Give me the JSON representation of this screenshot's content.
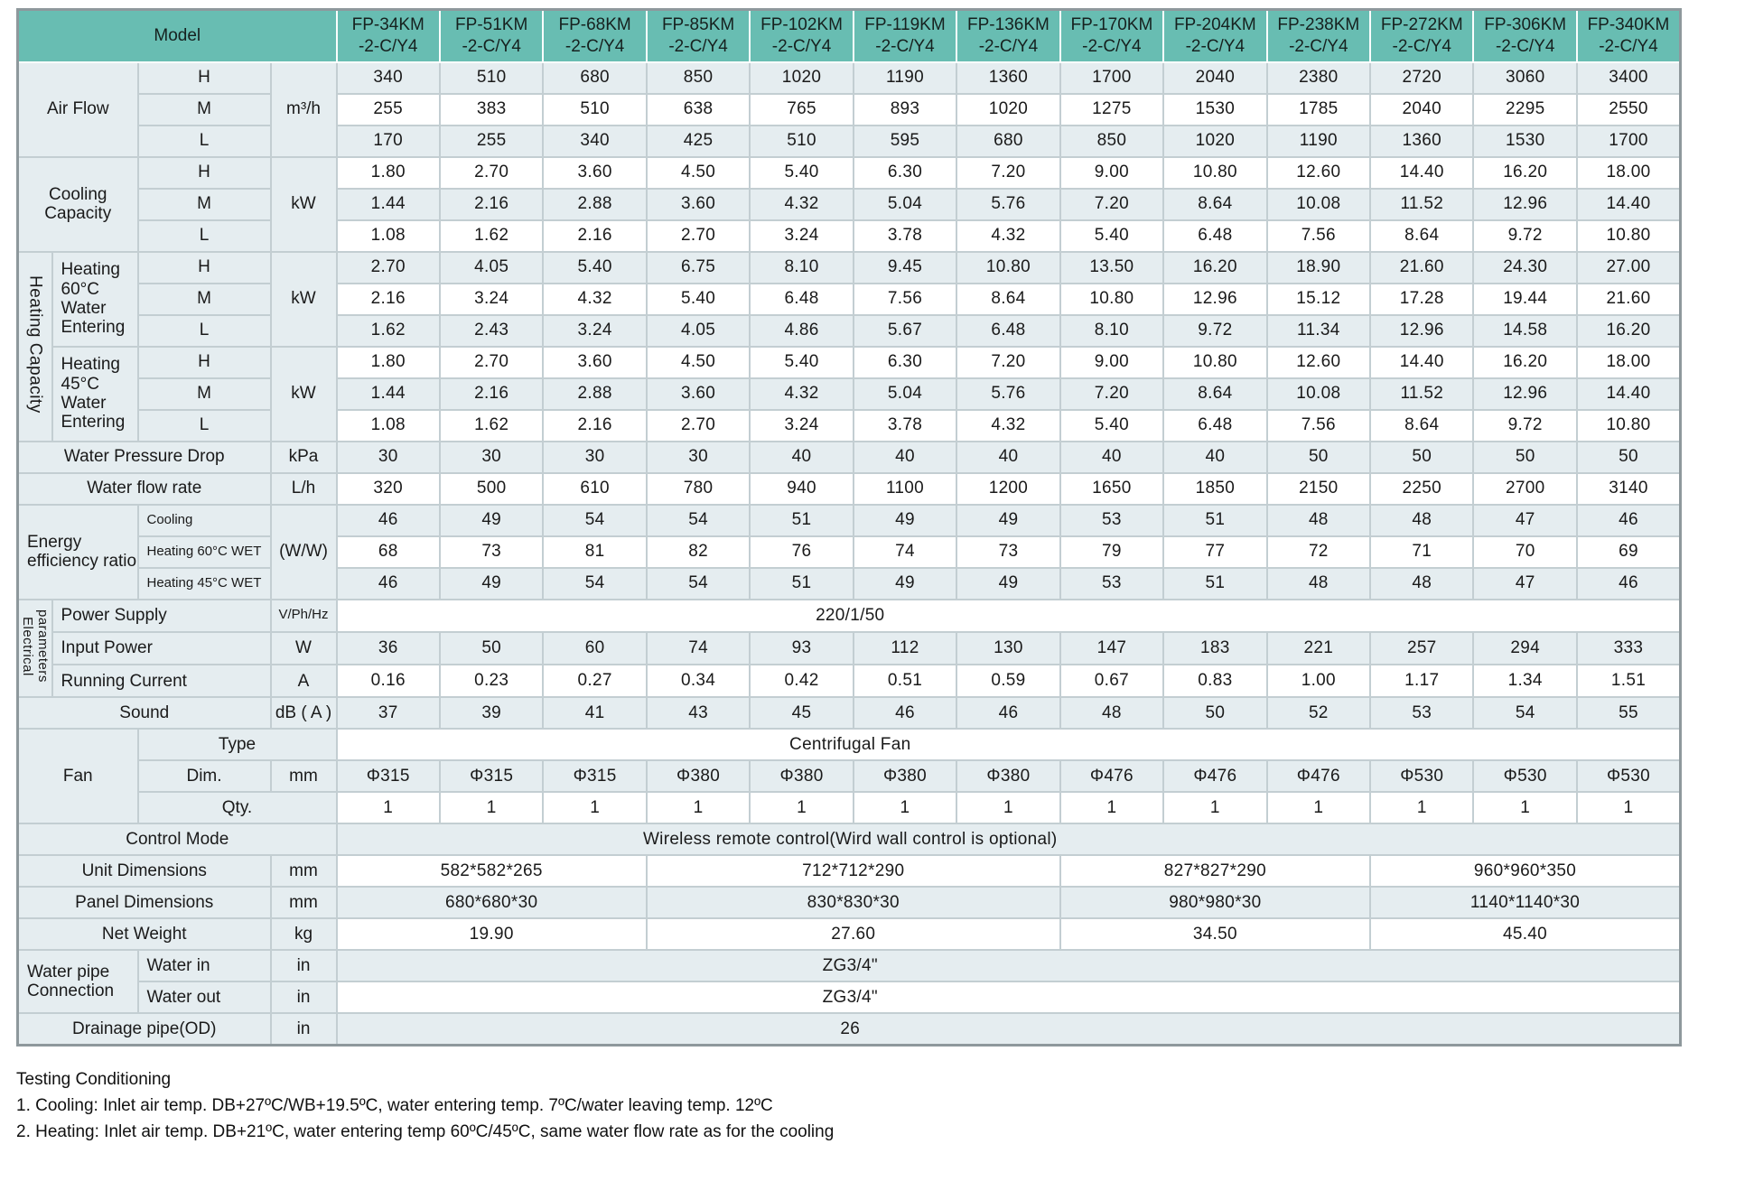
{
  "colors": {
    "header_bg": "#68bdb2",
    "row_light": "#e5edf0",
    "row_white": "#ffffff",
    "grid_line": "#c3ced2",
    "outer_frame": "#8e989c"
  },
  "table": {
    "model_label": "Model",
    "models": [
      "FP-34KM\n-2-C/Y4",
      "FP-51KM\n-2-C/Y4",
      "FP-68KM\n-2-C/Y4",
      "FP-85KM\n-2-C/Y4",
      "FP-102KM\n-2-C/Y4",
      "FP-119KM\n-2-C/Y4",
      "FP-136KM\n-2-C/Y4",
      "FP-170KM\n-2-C/Y4",
      "FP-204KM\n-2-C/Y4",
      "FP-238KM\n-2-C/Y4",
      "FP-272KM\n-2-C/Y4",
      "FP-306KM\n-2-C/Y4",
      "FP-340KM\n-2-C/Y4"
    ],
    "rows": [
      {
        "labels": [
          {
            "t": "Air Flow",
            "cs": 2,
            "rs": 3
          },
          {
            "t": "H"
          },
          {
            "t": "m³/h",
            "rs": 3
          }
        ],
        "values": [
          "340",
          "510",
          "680",
          "850",
          "1020",
          "1190",
          "1360",
          "1700",
          "2040",
          "2380",
          "2720",
          "3060",
          "3400"
        ]
      },
      {
        "labels": [
          {
            "t": "M"
          }
        ],
        "values": [
          "255",
          "383",
          "510",
          "638",
          "765",
          "893",
          "1020",
          "1275",
          "1530",
          "1785",
          "2040",
          "2295",
          "2550"
        ]
      },
      {
        "labels": [
          {
            "t": "L"
          }
        ],
        "values": [
          "170",
          "255",
          "340",
          "425",
          "510",
          "595",
          "680",
          "850",
          "1020",
          "1190",
          "1360",
          "1530",
          "1700"
        ]
      },
      {
        "labels": [
          {
            "t": "Cooling Capacity",
            "cs": 2,
            "rs": 3
          },
          {
            "t": "H"
          },
          {
            "t": "kW",
            "rs": 3
          }
        ],
        "values": [
          "1.80",
          "2.70",
          "3.60",
          "4.50",
          "5.40",
          "6.30",
          "7.20",
          "9.00",
          "10.80",
          "12.60",
          "14.40",
          "16.20",
          "18.00"
        ]
      },
      {
        "labels": [
          {
            "t": "M"
          }
        ],
        "values": [
          "1.44",
          "2.16",
          "2.88",
          "3.60",
          "4.32",
          "5.04",
          "5.76",
          "7.20",
          "8.64",
          "10.08",
          "11.52",
          "12.96",
          "14.40"
        ]
      },
      {
        "labels": [
          {
            "t": "L"
          }
        ],
        "values": [
          "1.08",
          "1.62",
          "2.16",
          "2.70",
          "3.24",
          "3.78",
          "4.32",
          "5.40",
          "6.48",
          "7.56",
          "8.64",
          "9.72",
          "10.80"
        ]
      },
      {
        "labels": [
          {
            "t": "Heating Capacity",
            "rs": 6,
            "v": true
          },
          {
            "t": "Heating 60°C Water Entering",
            "rs": 3,
            "lf": true
          },
          {
            "t": "H"
          },
          {
            "t": "kW",
            "rs": 3
          }
        ],
        "values": [
          "2.70",
          "4.05",
          "5.40",
          "6.75",
          "8.10",
          "9.45",
          "10.80",
          "13.50",
          "16.20",
          "18.90",
          "21.60",
          "24.30",
          "27.00"
        ]
      },
      {
        "labels": [
          {
            "t": "M"
          }
        ],
        "values": [
          "2.16",
          "3.24",
          "4.32",
          "5.40",
          "6.48",
          "7.56",
          "8.64",
          "10.80",
          "12.96",
          "15.12",
          "17.28",
          "19.44",
          "21.60"
        ]
      },
      {
        "labels": [
          {
            "t": "L"
          }
        ],
        "values": [
          "1.62",
          "2.43",
          "3.24",
          "4.05",
          "4.86",
          "5.67",
          "6.48",
          "8.10",
          "9.72",
          "11.34",
          "12.96",
          "14.58",
          "16.20"
        ]
      },
      {
        "labels": [
          {
            "t": "Heating 45°C Water Entering",
            "rs": 3,
            "lf": true
          },
          {
            "t": "H"
          },
          {
            "t": "kW",
            "rs": 3
          }
        ],
        "values": [
          "1.80",
          "2.70",
          "3.60",
          "4.50",
          "5.40",
          "6.30",
          "7.20",
          "9.00",
          "10.80",
          "12.60",
          "14.40",
          "16.20",
          "18.00"
        ]
      },
      {
        "labels": [
          {
            "t": "M"
          }
        ],
        "values": [
          "1.44",
          "2.16",
          "2.88",
          "3.60",
          "4.32",
          "5.04",
          "5.76",
          "7.20",
          "8.64",
          "10.08",
          "11.52",
          "12.96",
          "14.40"
        ]
      },
      {
        "labels": [
          {
            "t": "L"
          }
        ],
        "values": [
          "1.08",
          "1.62",
          "2.16",
          "2.70",
          "3.24",
          "3.78",
          "4.32",
          "5.40",
          "6.48",
          "7.56",
          "8.64",
          "9.72",
          "10.80"
        ]
      },
      {
        "labels": [
          {
            "t": "Water Pressure Drop",
            "cs": 3
          },
          {
            "t": "kPa"
          }
        ],
        "values": [
          "30",
          "30",
          "30",
          "30",
          "40",
          "40",
          "40",
          "40",
          "40",
          "50",
          "50",
          "50",
          "50"
        ]
      },
      {
        "labels": [
          {
            "t": "Water flow rate",
            "cs": 3
          },
          {
            "t": "L/h"
          }
        ],
        "values": [
          "320",
          "500",
          "610",
          "780",
          "940",
          "1100",
          "1200",
          "1650",
          "1850",
          "2150",
          "2250",
          "2700",
          "3140"
        ]
      },
      {
        "labels": [
          {
            "t": "Energy efficiency ratio",
            "cs": 2,
            "rs": 3,
            "lf": true
          },
          {
            "t": "Cooling",
            "sm": true,
            "lf": true
          },
          {
            "t": "(W/W)",
            "rs": 3
          }
        ],
        "values": [
          "46",
          "49",
          "54",
          "54",
          "51",
          "49",
          "49",
          "53",
          "51",
          "48",
          "48",
          "47",
          "46"
        ]
      },
      {
        "labels": [
          {
            "t": "Heating 60°C WET",
            "sm": true,
            "lf": true
          }
        ],
        "values": [
          "68",
          "73",
          "81",
          "82",
          "76",
          "74",
          "73",
          "79",
          "77",
          "72",
          "71",
          "70",
          "69"
        ]
      },
      {
        "labels": [
          {
            "t": "Heating 45°C WET",
            "sm": true,
            "lf": true
          }
        ],
        "values": [
          "46",
          "49",
          "54",
          "54",
          "51",
          "49",
          "49",
          "53",
          "51",
          "48",
          "48",
          "47",
          "46"
        ]
      },
      {
        "labels": [
          {
            "t": "Electrical parameters",
            "rs": 3,
            "v": true,
            "sm": true
          },
          {
            "t": "Power Supply",
            "cs": 2,
            "lf": true
          },
          {
            "t": "V/Ph/Hz",
            "sm": true
          }
        ],
        "span": "220/1/50"
      },
      {
        "labels": [
          {
            "t": "Input Power",
            "cs": 2,
            "lf": true
          },
          {
            "t": "W"
          }
        ],
        "values": [
          "36",
          "50",
          "60",
          "74",
          "93",
          "112",
          "130",
          "147",
          "183",
          "221",
          "257",
          "294",
          "333"
        ]
      },
      {
        "labels": [
          {
            "t": "Running Current",
            "cs": 2,
            "lf": true
          },
          {
            "t": "A"
          }
        ],
        "values": [
          "0.16",
          "0.23",
          "0.27",
          "0.34",
          "0.42",
          "0.51",
          "0.59",
          "0.67",
          "0.83",
          "1.00",
          "1.17",
          "1.34",
          "1.51"
        ]
      },
      {
        "labels": [
          {
            "t": "Sound",
            "cs": 3
          },
          {
            "t": "dB ( A )"
          }
        ],
        "values": [
          "37",
          "39",
          "41",
          "43",
          "45",
          "46",
          "46",
          "48",
          "50",
          "52",
          "53",
          "54",
          "55"
        ]
      },
      {
        "labels": [
          {
            "t": "Fan",
            "cs": 2,
            "rs": 3
          },
          {
            "t": "Type",
            "cs": 2
          }
        ],
        "span": "Centrifugal Fan"
      },
      {
        "labels": [
          {
            "t": "Dim."
          },
          {
            "t": "mm"
          }
        ],
        "values": [
          "Φ315",
          "Φ315",
          "Φ315",
          "Φ380",
          "Φ380",
          "Φ380",
          "Φ380",
          "Φ476",
          "Φ476",
          "Φ476",
          "Φ530",
          "Φ530",
          "Φ530"
        ]
      },
      {
        "labels": [
          {
            "t": "Qty.",
            "cs": 2
          }
        ],
        "values": [
          "1",
          "1",
          "1",
          "1",
          "1",
          "1",
          "1",
          "1",
          "1",
          "1",
          "1",
          "1",
          "1"
        ]
      },
      {
        "labels": [
          {
            "t": "Control Mode",
            "cs": 4
          }
        ],
        "span": "Wireless remote control(Wird wall control is optional)"
      },
      {
        "labels": [
          {
            "t": "Unit Dimensions",
            "cs": 3
          },
          {
            "t": "mm"
          }
        ],
        "groups": [
          {
            "cs": 3,
            "t": "582*582*265"
          },
          {
            "cs": 4,
            "t": "712*712*290"
          },
          {
            "cs": 3,
            "t": "827*827*290"
          },
          {
            "cs": 3,
            "t": "960*960*350"
          }
        ]
      },
      {
        "labels": [
          {
            "t": "Panel Dimensions",
            "cs": 3
          },
          {
            "t": "mm"
          }
        ],
        "groups": [
          {
            "cs": 3,
            "t": "680*680*30"
          },
          {
            "cs": 4,
            "t": "830*830*30"
          },
          {
            "cs": 3,
            "t": "980*980*30"
          },
          {
            "cs": 3,
            "t": "1140*1140*30"
          }
        ]
      },
      {
        "labels": [
          {
            "t": "Net Weight",
            "cs": 3
          },
          {
            "t": "kg"
          }
        ],
        "groups": [
          {
            "cs": 3,
            "t": "19.90"
          },
          {
            "cs": 4,
            "t": "27.60"
          },
          {
            "cs": 3,
            "t": "34.50"
          },
          {
            "cs": 3,
            "t": "45.40"
          }
        ]
      },
      {
        "labels": [
          {
            "t": "Water pipe Connection",
            "cs": 2,
            "rs": 2,
            "lf": true
          },
          {
            "t": "Water in",
            "lf": true
          },
          {
            "t": "in"
          }
        ],
        "span": "ZG3/4\""
      },
      {
        "labels": [
          {
            "t": "Water out",
            "lf": true
          },
          {
            "t": "in"
          }
        ],
        "span": "ZG3/4\""
      },
      {
        "labels": [
          {
            "t": "Drainage pipe(OD)",
            "cs": 3
          },
          {
            "t": "in"
          }
        ],
        "span": "26"
      }
    ]
  },
  "footer": {
    "title": "Testing Conditioning",
    "notes": [
      "1. Cooling: Inlet air temp. DB+27ºC/WB+19.5ºC, water entering temp. 7ºC/water leaving temp. 12ºC",
      "2. Heating: Inlet air temp. DB+21ºC, water entering temp 60ºC/45ºC, same water flow rate as for the cooling"
    ]
  }
}
